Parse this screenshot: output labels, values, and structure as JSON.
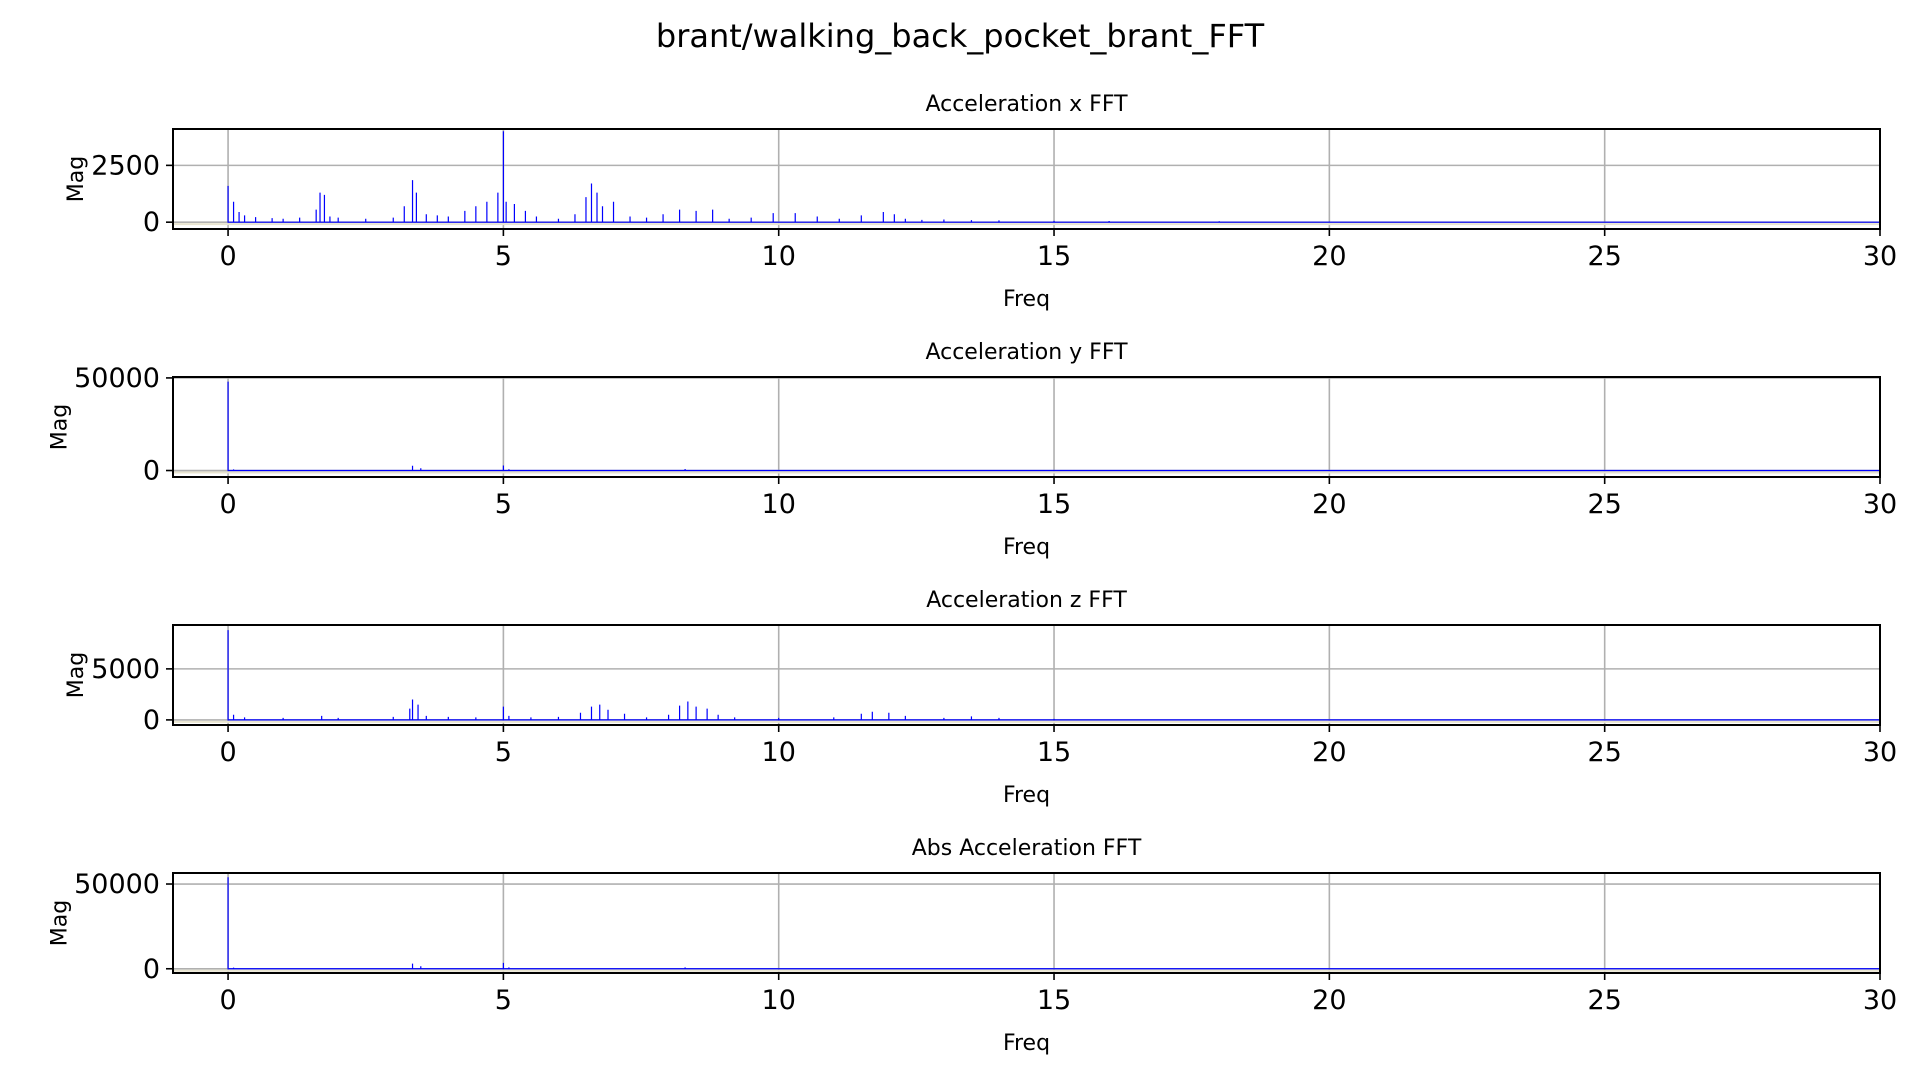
{
  "figure": {
    "suptitle": "brant/walking_back_pocket_brant_FFT"
  },
  "colors": {
    "line": "#0000ff",
    "grid": "#b0b0b0",
    "axis": "#000000",
    "baseline_shadow": "#e8e4d0"
  },
  "chart_data": [
    {
      "type": "line",
      "title": "Acceleration x FFT",
      "xlabel": "Freq",
      "ylabel": "Mag",
      "xlim": [
        -1,
        30
      ],
      "ylim": [
        -300,
        4100
      ],
      "xticks": [
        0,
        5,
        10,
        15,
        20,
        25,
        30
      ],
      "yticks": [
        0,
        2500
      ],
      "grid": true,
      "series": [
        {
          "x": [
            0,
            0.1,
            0.2,
            0.3,
            0.5,
            0.8,
            1.0,
            1.3,
            1.6,
            1.67,
            1.75,
            1.85,
            2.0,
            2.5,
            3.0,
            3.2,
            3.35,
            3.42,
            3.6,
            3.8,
            4.0,
            4.3,
            4.5,
            4.7,
            4.9,
            5.0,
            5.05,
            5.2,
            5.4,
            5.6,
            6.0,
            6.3,
            6.5,
            6.6,
            6.7,
            6.8,
            7.0,
            7.3,
            7.6,
            7.9,
            8.2,
            8.5,
            8.8,
            9.1,
            9.5,
            9.9,
            10.3,
            10.7,
            11.1,
            11.5,
            11.9,
            12.1,
            12.3,
            12.6,
            13.0,
            13.5,
            14.0,
            15.0,
            16.0,
            18.0,
            20.0,
            25.0,
            30.0
          ],
          "y": [
            1600,
            900,
            450,
            300,
            220,
            180,
            150,
            200,
            550,
            1300,
            1200,
            250,
            200,
            150,
            200,
            700,
            1850,
            1300,
            350,
            300,
            250,
            500,
            700,
            900,
            1300,
            4000,
            900,
            800,
            500,
            250,
            150,
            350,
            1100,
            1700,
            1300,
            700,
            900,
            250,
            200,
            350,
            550,
            500,
            550,
            150,
            200,
            400,
            400,
            250,
            150,
            300,
            450,
            350,
            150,
            100,
            120,
            90,
            80,
            60,
            50,
            40,
            30,
            25,
            20
          ]
        }
      ]
    },
    {
      "type": "line",
      "title": "Acceleration y FFT",
      "xlabel": "Freq",
      "ylabel": "Mag",
      "xlim": [
        -1,
        30
      ],
      "ylim": [
        -3500,
        50500
      ],
      "xticks": [
        0,
        5,
        10,
        15,
        20,
        25,
        30
      ],
      "yticks": [
        0,
        50000
      ],
      "grid": true,
      "series": [
        {
          "x": [
            0,
            0.1,
            0.5,
            1.0,
            2.0,
            3.0,
            3.35,
            3.5,
            4.0,
            5.0,
            5.1,
            6.0,
            7.0,
            8.3,
            9.0,
            10.0,
            12.0,
            15.0,
            20.0,
            25.0,
            30.0
          ],
          "y": [
            48000,
            600,
            300,
            250,
            200,
            250,
            2600,
            1200,
            300,
            2700,
            700,
            300,
            300,
            800,
            300,
            300,
            200,
            150,
            100,
            80,
            60
          ]
        }
      ]
    },
    {
      "type": "line",
      "title": "Acceleration z FFT",
      "xlabel": "Freq",
      "ylabel": "Mag",
      "xlim": [
        -1,
        30
      ],
      "ylim": [
        -500,
        9300
      ],
      "xticks": [
        0,
        5,
        10,
        15,
        20,
        25,
        30
      ],
      "yticks": [
        0,
        5000
      ],
      "grid": true,
      "series": [
        {
          "x": [
            0,
            0.1,
            0.3,
            1.0,
            1.7,
            2.0,
            3.0,
            3.3,
            3.35,
            3.45,
            3.6,
            4.0,
            4.5,
            5.0,
            5.1,
            5.5,
            6.0,
            6.4,
            6.6,
            6.75,
            6.9,
            7.2,
            7.6,
            8.0,
            8.2,
            8.35,
            8.5,
            8.7,
            8.9,
            9.2,
            10.0,
            11.0,
            11.5,
            11.7,
            12.0,
            12.3,
            13.0,
            13.5,
            14.0,
            15.0,
            20.0,
            30.0
          ],
          "y": [
            8800,
            500,
            250,
            200,
            400,
            200,
            300,
            1100,
            2000,
            1500,
            400,
            300,
            250,
            1300,
            400,
            250,
            300,
            700,
            1300,
            1500,
            1000,
            600,
            250,
            500,
            1400,
            1800,
            1300,
            1100,
            500,
            250,
            200,
            250,
            600,
            800,
            700,
            400,
            200,
            350,
            200,
            100,
            50,
            30
          ]
        }
      ]
    },
    {
      "type": "line",
      "title": "Abs Acceleration FFT",
      "xlabel": "Freq",
      "ylabel": "Mag",
      "xlim": [
        -1,
        30
      ],
      "ylim": [
        -2500,
        56500
      ],
      "xticks": [
        0,
        5,
        10,
        15,
        20,
        25,
        30
      ],
      "yticks": [
        0,
        50000
      ],
      "grid": true,
      "series": [
        {
          "x": [
            0,
            0.1,
            0.5,
            1.0,
            2.0,
            3.0,
            3.35,
            3.5,
            4.0,
            5.0,
            5.1,
            6.0,
            7.0,
            8.3,
            9.0,
            10.0,
            12.0,
            15.0,
            20.0,
            25.0,
            30.0
          ],
          "y": [
            54000,
            700,
            350,
            250,
            200,
            300,
            3000,
            1500,
            300,
            3500,
            800,
            300,
            300,
            800,
            300,
            300,
            200,
            150,
            100,
            80,
            60
          ]
        }
      ]
    }
  ]
}
